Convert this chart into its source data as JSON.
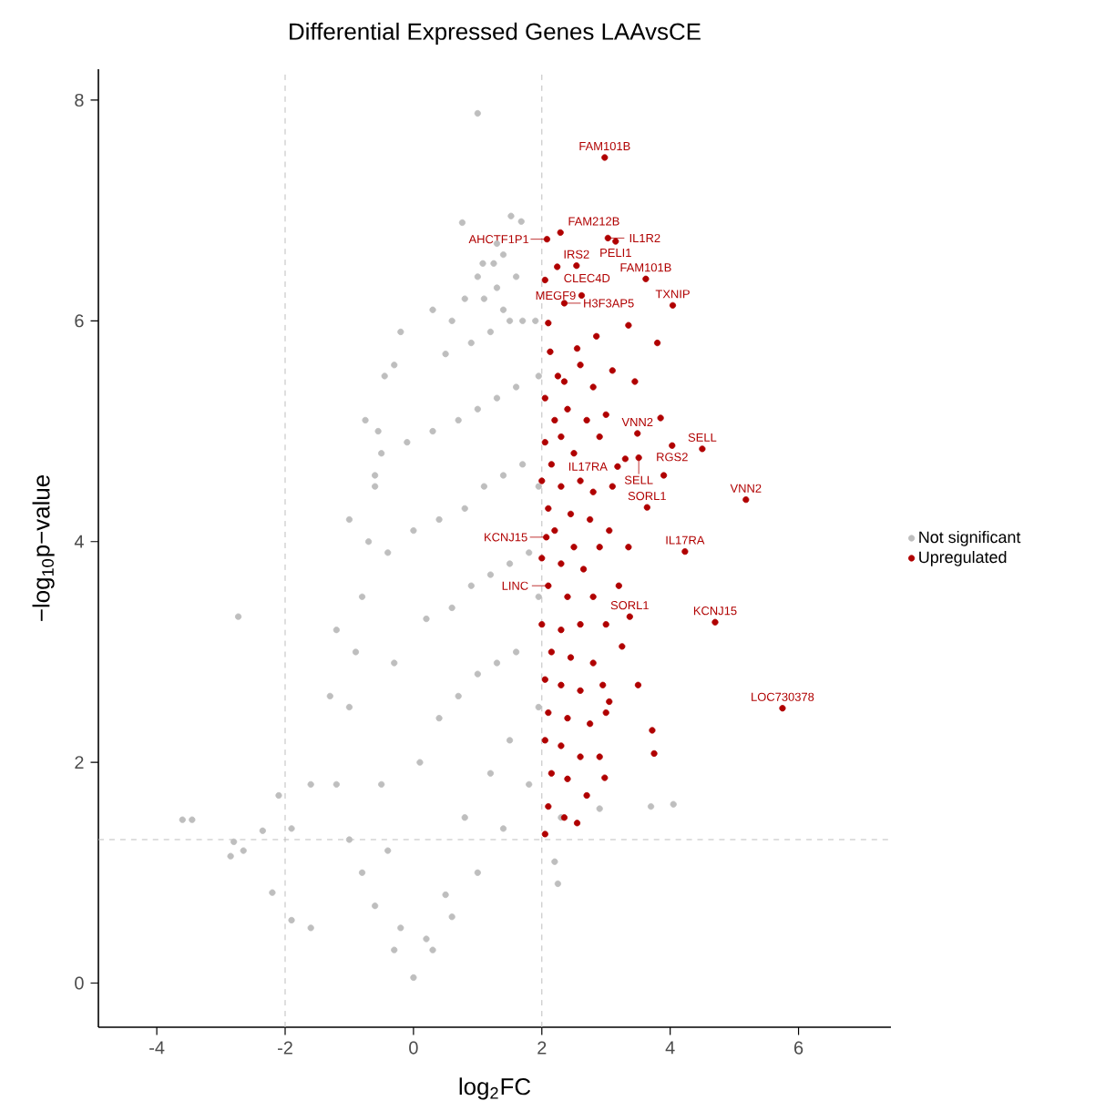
{
  "chart_data": {
    "type": "scatter",
    "title": "Differential Expressed Genes LAAvsCE",
    "xlabel": "log$_{2}$FC",
    "ylabel": "−log$_{10}$p−value",
    "xlim": [
      -4.91,
      7.44
    ],
    "ylim": [
      -0.4,
      8.28
    ],
    "xticks": [
      -4,
      -2,
      0,
      2,
      4,
      6
    ],
    "yticks": [
      0,
      2,
      4,
      6,
      8
    ],
    "grid": false,
    "legend": "right",
    "marker": "circle",
    "ref_lines": [
      {
        "axis": "x",
        "value": -2,
        "color": "#bebebe",
        "line_style": "dashed"
      },
      {
        "axis": "x",
        "value": 2,
        "color": "#bebebe",
        "line_style": "dashed"
      },
      {
        "axis": "y",
        "value": 1.3,
        "color": "#bebebe",
        "line_style": "dashed"
      }
    ],
    "series": [
      {
        "name": "Not significant",
        "color": "#bebebe",
        "x": [
          1.0,
          0.76,
          1.52,
          1.68,
          1.08,
          1.25,
          1.7,
          1.4,
          1.3,
          -3.6,
          -3.45,
          -2.8,
          -2.85,
          -2.65,
          -2.35,
          -2.2,
          -1.9,
          -1.6,
          -2.73,
          -2.1,
          -1.9,
          -1.6,
          2.2,
          2.25,
          2.3,
          2.9,
          3.7,
          4.05,
          -0.3,
          -0.6,
          -0.8,
          -1.0,
          -1.2,
          -1.0,
          -0.9,
          -0.8,
          -0.7,
          -0.6,
          -0.55,
          -0.45,
          -0.6,
          -0.75,
          -1.0,
          -1.2,
          -1.3,
          0.3,
          0.6,
          1.0,
          1.4,
          1.8,
          1.95,
          1.95,
          1.95,
          1.95,
          1.9,
          1.6,
          0.0,
          0.2,
          -0.2,
          0.5,
          -0.4,
          0.8,
          1.2,
          1.5,
          -0.5,
          0.1,
          0.4,
          0.7,
          1.0,
          1.3,
          1.6,
          -0.3,
          0.2,
          0.6,
          0.9,
          1.2,
          1.5,
          1.8,
          -0.4,
          0.0,
          0.4,
          0.8,
          1.1,
          1.4,
          1.7,
          -0.5,
          -0.1,
          0.3,
          0.7,
          1.0,
          1.3,
          1.6,
          -0.3,
          0.5,
          0.9,
          1.2,
          1.5,
          0.8,
          1.1,
          1.4,
          1.0,
          1.3,
          0.6,
          -0.2,
          0.3
        ],
        "values": [
          7.88,
          6.89,
          6.95,
          6.9,
          6.52,
          6.52,
          6.0,
          6.6,
          6.7,
          1.48,
          1.48,
          1.28,
          1.15,
          1.2,
          1.38,
          0.82,
          0.57,
          0.5,
          3.32,
          1.7,
          1.4,
          1.8,
          1.1,
          0.9,
          1.5,
          1.58,
          1.6,
          1.62,
          0.3,
          0.7,
          1.0,
          1.3,
          1.8,
          2.5,
          3.0,
          3.5,
          4.0,
          4.5,
          5.0,
          5.5,
          4.6,
          5.1,
          4.2,
          3.2,
          2.6,
          0.3,
          0.6,
          1.0,
          1.4,
          1.8,
          2.5,
          3.5,
          4.5,
          5.5,
          6.0,
          6.4,
          0.05,
          0.4,
          0.5,
          0.8,
          1.2,
          1.5,
          1.9,
          2.2,
          1.8,
          2.0,
          2.4,
          2.6,
          2.8,
          2.9,
          3.0,
          2.9,
          3.3,
          3.4,
          3.6,
          3.7,
          3.8,
          3.9,
          3.9,
          4.1,
          4.2,
          4.3,
          4.5,
          4.6,
          4.7,
          4.8,
          4.9,
          5.0,
          5.1,
          5.2,
          5.3,
          5.4,
          5.6,
          5.7,
          5.8,
          5.9,
          6.0,
          6.2,
          6.2,
          6.1,
          6.4,
          6.3,
          6.0,
          5.9,
          6.1
        ]
      },
      {
        "name": "Upregulated",
        "color": "#b00000",
        "x": [
          2.98,
          2.29,
          2.08,
          3.15,
          3.03,
          2.24,
          2.54,
          3.62,
          2.35,
          2.62,
          4.04,
          3.49,
          4.5,
          4.03,
          3.51,
          3.18,
          5.18,
          3.64,
          4.23,
          2.07,
          2.1,
          3.37,
          4.7,
          5.75,
          2.05,
          2.1,
          3.35,
          2.85,
          2.13,
          2.55,
          3.8,
          2.6,
          3.1,
          2.25,
          2.35,
          2.8,
          3.45,
          2.05,
          2.4,
          2.2,
          2.7,
          3.0,
          3.85,
          2.05,
          2.3,
          2.5,
          2.15,
          2.9,
          3.3,
          2.0,
          2.3,
          2.6,
          2.8,
          3.1,
          2.1,
          2.45,
          2.75,
          3.05,
          3.9,
          2.2,
          2.5,
          2.9,
          3.35,
          2.0,
          2.3,
          2.65,
          2.4,
          2.8,
          3.2,
          2.0,
          2.3,
          2.6,
          3.0,
          2.15,
          2.45,
          2.8,
          3.25,
          2.05,
          2.3,
          2.6,
          2.95,
          3.05,
          3.5,
          2.1,
          2.4,
          2.75,
          3.0,
          2.05,
          2.3,
          2.6,
          2.9,
          3.72,
          2.15,
          2.4,
          2.7,
          3.75,
          2.1,
          2.35,
          2.05,
          2.55,
          2.98
        ],
        "values": [
          7.48,
          6.8,
          6.74,
          6.72,
          6.75,
          6.49,
          6.5,
          6.38,
          6.16,
          6.23,
          6.14,
          4.98,
          4.84,
          4.87,
          4.76,
          4.68,
          4.38,
          4.31,
          3.91,
          4.04,
          3.6,
          3.32,
          3.27,
          2.49,
          6.37,
          5.98,
          5.96,
          5.86,
          5.72,
          5.75,
          5.8,
          5.6,
          5.55,
          5.5,
          5.45,
          5.4,
          5.45,
          5.3,
          5.2,
          5.1,
          5.1,
          5.15,
          5.12,
          4.9,
          4.95,
          4.8,
          4.7,
          4.95,
          4.75,
          4.55,
          4.5,
          4.55,
          4.45,
          4.5,
          4.3,
          4.25,
          4.2,
          4.1,
          4.6,
          4.1,
          3.95,
          3.95,
          3.95,
          3.85,
          3.8,
          3.75,
          3.5,
          3.5,
          3.6,
          3.25,
          3.2,
          3.25,
          3.25,
          3.0,
          2.95,
          2.9,
          3.05,
          2.75,
          2.7,
          2.65,
          2.7,
          2.55,
          2.7,
          2.45,
          2.4,
          2.35,
          2.45,
          2.2,
          2.15,
          2.05,
          2.05,
          2.29,
          1.9,
          1.85,
          1.7,
          2.08,
          1.6,
          1.5,
          1.35,
          1.45,
          1.86
        ]
      }
    ],
    "annotations": [
      {
        "text": "FAM101B",
        "x": 2.98,
        "y": 7.48
      },
      {
        "text": "FAM212B",
        "x": 2.29,
        "y": 6.8
      },
      {
        "text": "AHCTF1P1",
        "x": 2.08,
        "y": 6.74
      },
      {
        "text": "PELI1",
        "x": 3.15,
        "y": 6.72
      },
      {
        "text": "IL1R2",
        "x": 3.03,
        "y": 6.75
      },
      {
        "text": "CLEC4D",
        "x": 2.24,
        "y": 6.49
      },
      {
        "text": "IRS2",
        "x": 2.54,
        "y": 6.5
      },
      {
        "text": "FAM101B",
        "x": 3.62,
        "y": 6.38
      },
      {
        "text": "H3F3AP5",
        "x": 2.35,
        "y": 6.16
      },
      {
        "text": "MEGF9",
        "x": 2.62,
        "y": 6.23
      },
      {
        "text": "TXNIP",
        "x": 4.04,
        "y": 6.14
      },
      {
        "text": "VNN2",
        "x": 3.49,
        "y": 4.98
      },
      {
        "text": "SELL",
        "x": 4.5,
        "y": 4.84
      },
      {
        "text": "RGS2",
        "x": 4.03,
        "y": 4.87
      },
      {
        "text": "SELL",
        "x": 3.51,
        "y": 4.76
      },
      {
        "text": "IL17RA",
        "x": 3.18,
        "y": 4.68
      },
      {
        "text": "VNN2",
        "x": 5.18,
        "y": 4.38
      },
      {
        "text": "SORL1",
        "x": 3.64,
        "y": 4.31
      },
      {
        "text": "IL17RA",
        "x": 4.23,
        "y": 3.91
      },
      {
        "text": "KCNJ15",
        "x": 2.07,
        "y": 4.04
      },
      {
        "text": "LINC",
        "x": 2.1,
        "y": 3.6
      },
      {
        "text": "SORL1",
        "x": 3.37,
        "y": 3.32
      },
      {
        "text": "KCNJ15",
        "x": 4.7,
        "y": 3.27
      },
      {
        "text": "LOC730378",
        "x": 5.75,
        "y": 2.49
      }
    ]
  }
}
